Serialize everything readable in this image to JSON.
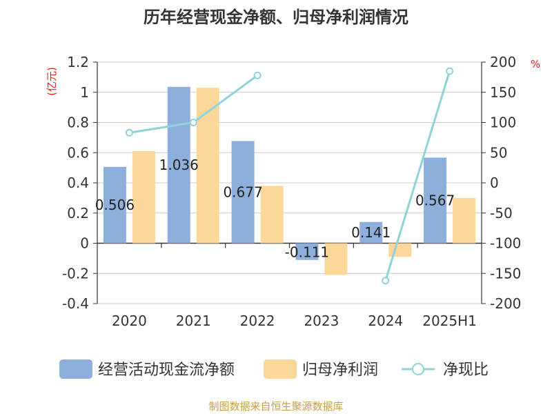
{
  "chart_data": {
    "type": "bar",
    "title": "历年经营现金净额、归母净利润情况",
    "categories": [
      "2020",
      "2021",
      "2022",
      "2023",
      "2024",
      "2025H1"
    ],
    "left_axis": {
      "unit": "(亿元)",
      "ylim": [
        -0.4,
        1.2
      ],
      "ticks": [
        "1.2",
        "1",
        "0.8",
        "0.6",
        "0.4",
        "0.2",
        "0",
        "-0.2",
        "-0.4"
      ]
    },
    "right_axis": {
      "unit": "%",
      "ylim": [
        -200,
        200
      ],
      "ticks": [
        "200",
        "150",
        "100",
        "50",
        "0",
        "-50",
        "-100",
        "-150",
        "-200"
      ]
    },
    "series": [
      {
        "name": "经营活动现金流净额",
        "kind": "bar",
        "axis": "left",
        "color": "#8eaedb",
        "values": [
          0.506,
          1.036,
          0.677,
          -0.111,
          0.141,
          0.567
        ],
        "labels": [
          "0.506",
          "1.036",
          "0.677",
          "-0.111",
          "0.141",
          "0.567"
        ]
      },
      {
        "name": "归母净利润",
        "kind": "bar",
        "axis": "left",
        "color": "#fdd69a",
        "values": [
          0.61,
          1.03,
          0.38,
          -0.21,
          -0.09,
          0.3
        ]
      },
      {
        "name": "净现比",
        "kind": "line",
        "axis": "right",
        "color": "#8fd3d8",
        "values": [
          83,
          100,
          178,
          null,
          -162,
          185
        ]
      }
    ],
    "grid": true,
    "legend_position": "bottom"
  },
  "source_text": "制图数据来自恒生聚源数据库"
}
